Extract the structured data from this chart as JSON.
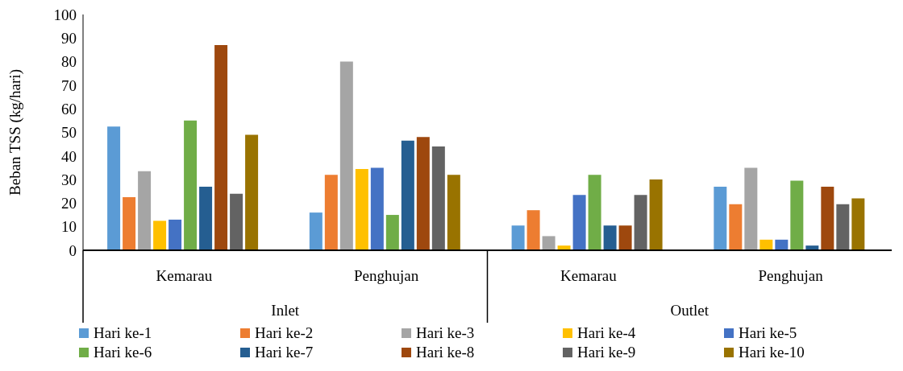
{
  "chart_data": {
    "type": "bar",
    "ylabel": "Beban TSS (kg/hari)",
    "categories": [
      "Kemarau",
      "Penghujan",
      "Kemarau",
      "Penghujan"
    ],
    "annotations": [
      "Inlet",
      "Outlet"
    ],
    "series": [
      {
        "name": "Hari ke-1",
        "color": "#5b9bd5",
        "values": [
          52.5,
          16,
          10.5,
          27
        ]
      },
      {
        "name": "Hari ke-2",
        "color": "#ed7d31",
        "values": [
          22.5,
          32,
          17,
          19.5
        ]
      },
      {
        "name": "Hari ke-3",
        "color": "#a5a5a5",
        "values": [
          33.5,
          80,
          6,
          35
        ]
      },
      {
        "name": "Hari ke-4",
        "color": "#ffc000",
        "values": [
          12.5,
          34.5,
          2,
          4.5
        ]
      },
      {
        "name": "Hari ke-5",
        "color": "#4472c4",
        "values": [
          13,
          35,
          23.5,
          4.5
        ]
      },
      {
        "name": "Hari ke-6",
        "color": "#70ad47",
        "values": [
          55,
          15,
          32,
          29.5
        ]
      },
      {
        "name": "Hari ke-7",
        "color": "#255e91",
        "values": [
          27,
          46.5,
          10.5,
          2
        ]
      },
      {
        "name": "Hari ke-8",
        "color": "#9e480e",
        "values": [
          87,
          48,
          10.5,
          27
        ]
      },
      {
        "name": "Hari ke-9",
        "color": "#636363",
        "values": [
          24,
          44,
          23.5,
          19.5
        ]
      },
      {
        "name": "Hari ke-10",
        "color": "#997300",
        "values": [
          49,
          32,
          30,
          22
        ]
      }
    ],
    "ylim": [
      0,
      100
    ],
    "yticks": [
      0,
      10,
      20,
      30,
      40,
      50,
      60,
      70,
      80,
      90,
      100
    ],
    "grid": false,
    "legend": "bottom"
  }
}
